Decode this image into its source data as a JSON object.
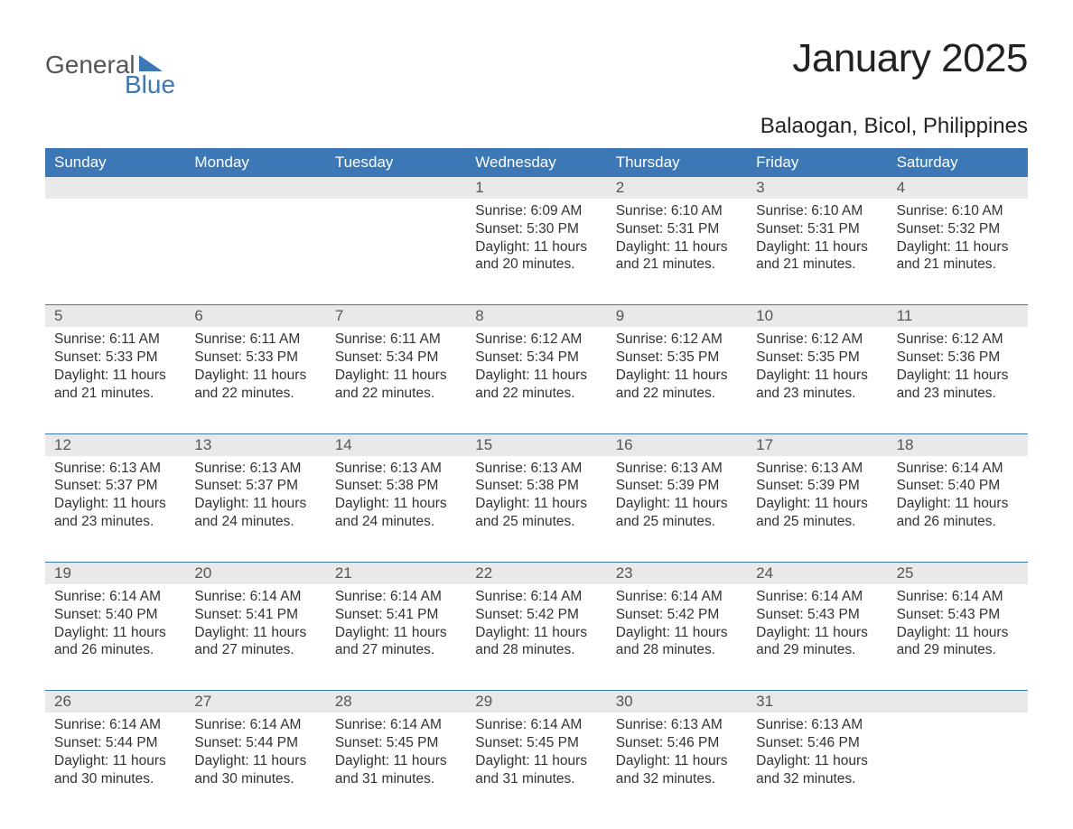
{
  "logo": {
    "word1": "General",
    "word2": "Blue"
  },
  "title": "January 2025",
  "location": "Balaogan, Bicol, Philippines",
  "colors": {
    "header_bg": "#3b78b5",
    "header_text": "#ffffff",
    "strip_bg": "#e9e9e9",
    "rule": "#3b78b5",
    "page_bg": "#ffffff",
    "text": "#333333",
    "logo_gray": "#555555",
    "logo_blue": "#3b78b5"
  },
  "weekdays": [
    "Sunday",
    "Monday",
    "Tuesday",
    "Wednesday",
    "Thursday",
    "Friday",
    "Saturday"
  ],
  "weeks": [
    [
      null,
      null,
      null,
      {
        "n": "1",
        "sunrise": "6:09 AM",
        "sunset": "5:30 PM",
        "daylight": "11 hours and 20 minutes."
      },
      {
        "n": "2",
        "sunrise": "6:10 AM",
        "sunset": "5:31 PM",
        "daylight": "11 hours and 21 minutes."
      },
      {
        "n": "3",
        "sunrise": "6:10 AM",
        "sunset": "5:31 PM",
        "daylight": "11 hours and 21 minutes."
      },
      {
        "n": "4",
        "sunrise": "6:10 AM",
        "sunset": "5:32 PM",
        "daylight": "11 hours and 21 minutes."
      }
    ],
    [
      {
        "n": "5",
        "sunrise": "6:11 AM",
        "sunset": "5:33 PM",
        "daylight": "11 hours and 21 minutes."
      },
      {
        "n": "6",
        "sunrise": "6:11 AM",
        "sunset": "5:33 PM",
        "daylight": "11 hours and 22 minutes."
      },
      {
        "n": "7",
        "sunrise": "6:11 AM",
        "sunset": "5:34 PM",
        "daylight": "11 hours and 22 minutes."
      },
      {
        "n": "8",
        "sunrise": "6:12 AM",
        "sunset": "5:34 PM",
        "daylight": "11 hours and 22 minutes."
      },
      {
        "n": "9",
        "sunrise": "6:12 AM",
        "sunset": "5:35 PM",
        "daylight": "11 hours and 22 minutes."
      },
      {
        "n": "10",
        "sunrise": "6:12 AM",
        "sunset": "5:35 PM",
        "daylight": "11 hours and 23 minutes."
      },
      {
        "n": "11",
        "sunrise": "6:12 AM",
        "sunset": "5:36 PM",
        "daylight": "11 hours and 23 minutes."
      }
    ],
    [
      {
        "n": "12",
        "sunrise": "6:13 AM",
        "sunset": "5:37 PM",
        "daylight": "11 hours and 23 minutes."
      },
      {
        "n": "13",
        "sunrise": "6:13 AM",
        "sunset": "5:37 PM",
        "daylight": "11 hours and 24 minutes."
      },
      {
        "n": "14",
        "sunrise": "6:13 AM",
        "sunset": "5:38 PM",
        "daylight": "11 hours and 24 minutes."
      },
      {
        "n": "15",
        "sunrise": "6:13 AM",
        "sunset": "5:38 PM",
        "daylight": "11 hours and 25 minutes."
      },
      {
        "n": "16",
        "sunrise": "6:13 AM",
        "sunset": "5:39 PM",
        "daylight": "11 hours and 25 minutes."
      },
      {
        "n": "17",
        "sunrise": "6:13 AM",
        "sunset": "5:39 PM",
        "daylight": "11 hours and 25 minutes."
      },
      {
        "n": "18",
        "sunrise": "6:14 AM",
        "sunset": "5:40 PM",
        "daylight": "11 hours and 26 minutes."
      }
    ],
    [
      {
        "n": "19",
        "sunrise": "6:14 AM",
        "sunset": "5:40 PM",
        "daylight": "11 hours and 26 minutes."
      },
      {
        "n": "20",
        "sunrise": "6:14 AM",
        "sunset": "5:41 PM",
        "daylight": "11 hours and 27 minutes."
      },
      {
        "n": "21",
        "sunrise": "6:14 AM",
        "sunset": "5:41 PM",
        "daylight": "11 hours and 27 minutes."
      },
      {
        "n": "22",
        "sunrise": "6:14 AM",
        "sunset": "5:42 PM",
        "daylight": "11 hours and 28 minutes."
      },
      {
        "n": "23",
        "sunrise": "6:14 AM",
        "sunset": "5:42 PM",
        "daylight": "11 hours and 28 minutes."
      },
      {
        "n": "24",
        "sunrise": "6:14 AM",
        "sunset": "5:43 PM",
        "daylight": "11 hours and 29 minutes."
      },
      {
        "n": "25",
        "sunrise": "6:14 AM",
        "sunset": "5:43 PM",
        "daylight": "11 hours and 29 minutes."
      }
    ],
    [
      {
        "n": "26",
        "sunrise": "6:14 AM",
        "sunset": "5:44 PM",
        "daylight": "11 hours and 30 minutes."
      },
      {
        "n": "27",
        "sunrise": "6:14 AM",
        "sunset": "5:44 PM",
        "daylight": "11 hours and 30 minutes."
      },
      {
        "n": "28",
        "sunrise": "6:14 AM",
        "sunset": "5:45 PM",
        "daylight": "11 hours and 31 minutes."
      },
      {
        "n": "29",
        "sunrise": "6:14 AM",
        "sunset": "5:45 PM",
        "daylight": "11 hours and 31 minutes."
      },
      {
        "n": "30",
        "sunrise": "6:13 AM",
        "sunset": "5:46 PM",
        "daylight": "11 hours and 32 minutes."
      },
      {
        "n": "31",
        "sunrise": "6:13 AM",
        "sunset": "5:46 PM",
        "daylight": "11 hours and 32 minutes."
      },
      null
    ]
  ],
  "labels": {
    "sunrise": "Sunrise:",
    "sunset": "Sunset:",
    "daylight": "Daylight:"
  }
}
